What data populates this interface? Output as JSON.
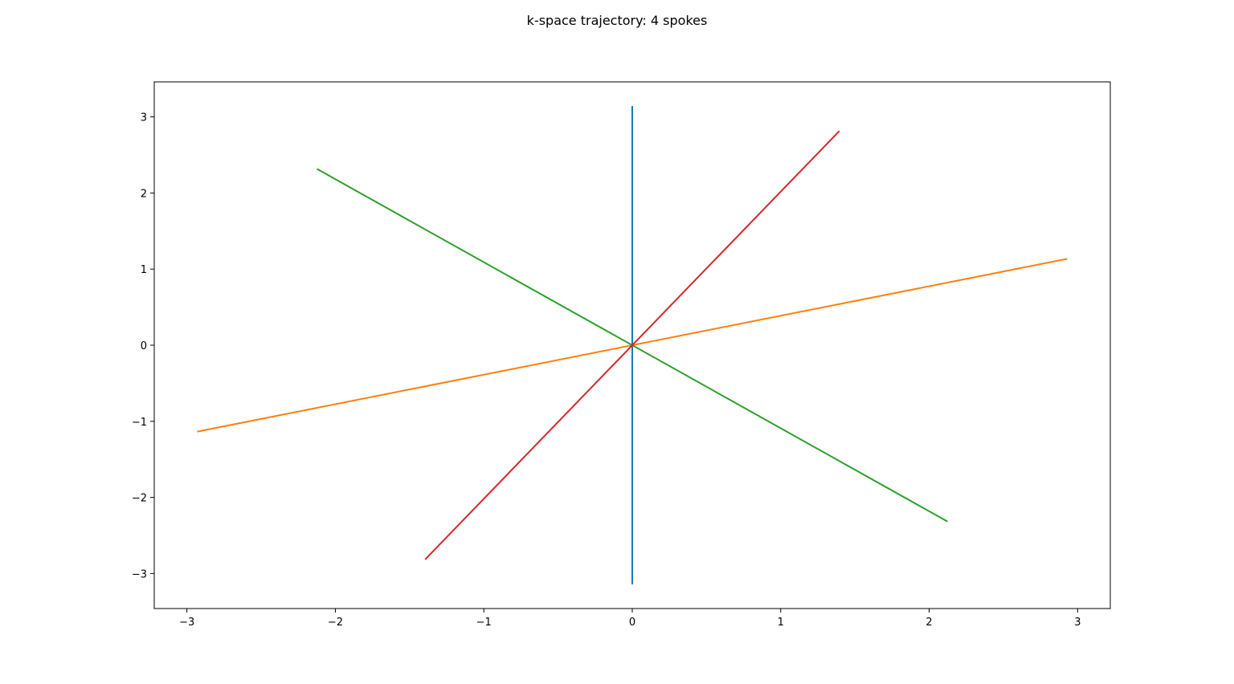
{
  "chart_data": {
    "type": "line",
    "title": "k-space trajectory: 4 spokes",
    "xlabel": "",
    "ylabel": "",
    "xlim": [
      -3.22,
      3.22
    ],
    "ylim": [
      -3.46,
      3.46
    ],
    "xticks": [
      -3,
      -2,
      -1,
      0,
      1,
      2,
      3
    ],
    "yticks": [
      -3,
      -2,
      -1,
      0,
      1,
      2,
      3
    ],
    "xtick_labels": [
      "−3",
      "−2",
      "−1",
      "0",
      "1",
      "2",
      "3"
    ],
    "ytick_labels": [
      "−3",
      "−2",
      "−1",
      "0",
      "1",
      "2",
      "3"
    ],
    "grid": false,
    "legend": "none",
    "series": [
      {
        "color": "#1f77b4",
        "x": [
          0.0,
          0.0
        ],
        "y": [
          -3.1416,
          3.1416
        ]
      },
      {
        "color": "#ff7f0e",
        "x": [
          -2.93,
          2.93
        ],
        "y": [
          -1.135,
          1.135
        ]
      },
      {
        "color": "#2ca02c",
        "x": [
          -2.124,
          2.124
        ],
        "y": [
          2.317,
          -2.317
        ]
      },
      {
        "color": "#d62728",
        "x": [
          -1.395,
          1.395
        ],
        "y": [
          -2.815,
          2.815
        ]
      }
    ]
  }
}
